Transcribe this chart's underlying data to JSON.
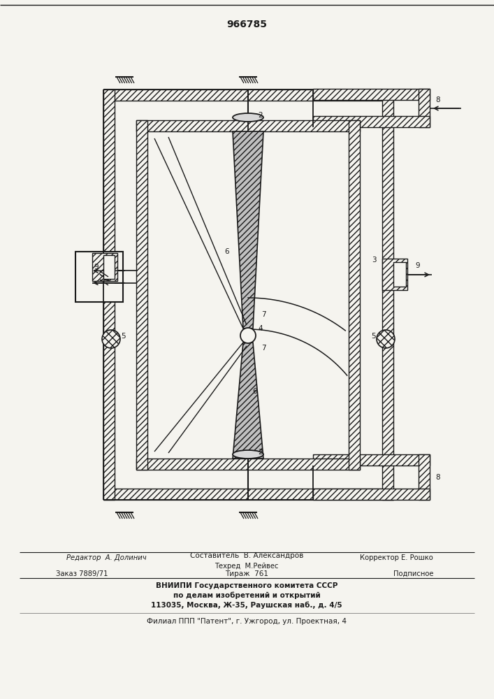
{
  "patent_number": "966785",
  "bg": "#f5f4ef",
  "lc": "#1a1a1a",
  "footer": {
    "l1_left": "Редактор  А. Долинич",
    "l1_center": "Составитель  В. Александров",
    "l1_right": "Корректор Е. Рошко",
    "l2_center": "Техред  М.Рейвес",
    "l3_left": "Заказ 7889/71",
    "l3_center": "Тираж  761",
    "l3_right": "Подписное",
    "l4": "ВНИИПИ Государственного комитета СССР",
    "l5": "по делам изобретений и открытий",
    "l6": "113035, Москва, Ж-35, Раушская наб., д. 4/5",
    "l7": "Филиал ППП \"Патент\", г. Ужгород, ул. Проектная, 4"
  }
}
